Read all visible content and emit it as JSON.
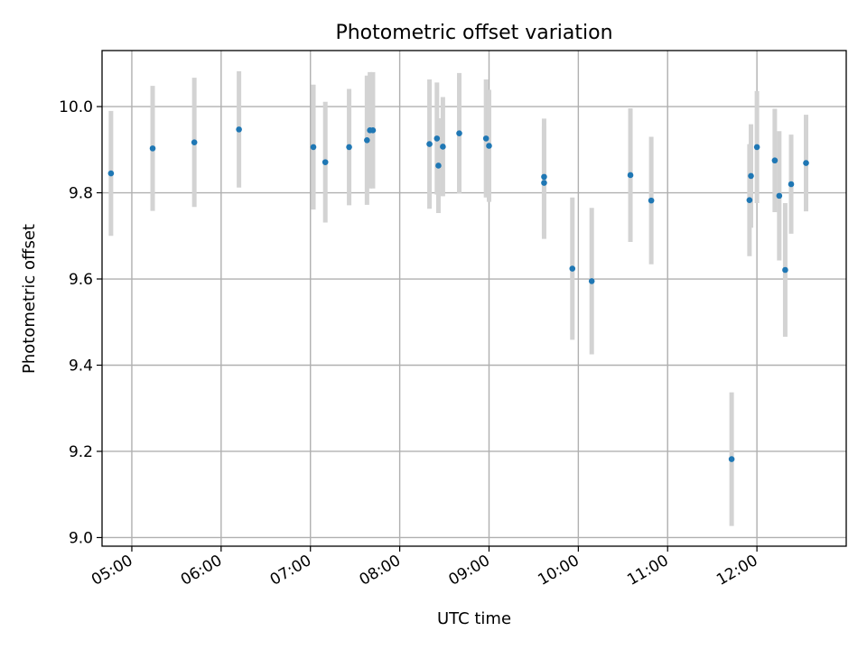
{
  "colors": {
    "point": "#1f77b4",
    "error_bar": "#d3d3d3",
    "grid": "#b0b0b0"
  },
  "chart_data": {
    "type": "scatter",
    "title": "Photometric offset variation",
    "xlabel": "UTC time",
    "ylabel": "Photometric offset",
    "x_unit": "hours UTC",
    "xlim": [
      "04:40",
      "13:00"
    ],
    "ylim": [
      8.98,
      10.13
    ],
    "x_ticks": [
      "05:00",
      "06:00",
      "07:00",
      "08:00",
      "09:00",
      "10:00",
      "11:00",
      "12:00"
    ],
    "y_ticks": [
      9.0,
      9.2,
      9.4,
      9.6,
      9.8,
      10.0
    ],
    "y_tick_labels": [
      "9.0",
      "9.2",
      "9.4",
      "9.6",
      "9.8",
      "10.0"
    ],
    "grid": true,
    "series": [
      {
        "points": [
          {
            "x": "04:46",
            "y": 9.845,
            "err": 0.145
          },
          {
            "x": "05:14",
            "y": 9.903,
            "err": 0.145
          },
          {
            "x": "05:42",
            "y": 9.917,
            "err": 0.15
          },
          {
            "x": "06:12",
            "y": 9.947,
            "err": 0.135
          },
          {
            "x": "07:02",
            "y": 9.906,
            "err": 0.145
          },
          {
            "x": "07:10",
            "y": 9.871,
            "err": 0.14
          },
          {
            "x": "07:26",
            "y": 9.906,
            "err": 0.135
          },
          {
            "x": "07:38",
            "y": 9.922,
            "err": 0.15
          },
          {
            "x": "07:40",
            "y": 9.945,
            "err": 0.135
          },
          {
            "x": "07:42",
            "y": 9.945,
            "err": 0.135
          },
          {
            "x": "08:20",
            "y": 9.913,
            "err": 0.15
          },
          {
            "x": "08:25",
            "y": 9.926,
            "err": 0.13
          },
          {
            "x": "08:26",
            "y": 9.863,
            "err": 0.11
          },
          {
            "x": "08:29",
            "y": 9.907,
            "err": 0.115
          },
          {
            "x": "08:40",
            "y": 9.938,
            "err": 0.14
          },
          {
            "x": "08:58",
            "y": 9.926,
            "err": 0.137
          },
          {
            "x": "09:00",
            "y": 9.909,
            "err": 0.13
          },
          {
            "x": "09:37",
            "y": 9.837,
            "err": 0.135
          },
          {
            "x": "09:37",
            "y": 9.823,
            "err": 0.13
          },
          {
            "x": "09:56",
            "y": 9.624,
            "err": 0.165
          },
          {
            "x": "10:09",
            "y": 9.595,
            "err": 0.17
          },
          {
            "x": "10:35",
            "y": 9.841,
            "err": 0.155
          },
          {
            "x": "10:49",
            "y": 9.782,
            "err": 0.148
          },
          {
            "x": "11:43",
            "y": 9.182,
            "err": 0.155
          },
          {
            "x": "11:55",
            "y": 9.783,
            "err": 0.13
          },
          {
            "x": "11:56",
            "y": 9.839,
            "err": 0.12
          },
          {
            "x": "12:00",
            "y": 9.906,
            "err": 0.13
          },
          {
            "x": "12:12",
            "y": 9.875,
            "err": 0.12
          },
          {
            "x": "12:15",
            "y": 9.793,
            "err": 0.15
          },
          {
            "x": "12:19",
            "y": 9.621,
            "err": 0.155
          },
          {
            "x": "12:23",
            "y": 9.82,
            "err": 0.115
          },
          {
            "x": "12:33",
            "y": 9.869,
            "err": 0.112
          }
        ]
      }
    ]
  }
}
